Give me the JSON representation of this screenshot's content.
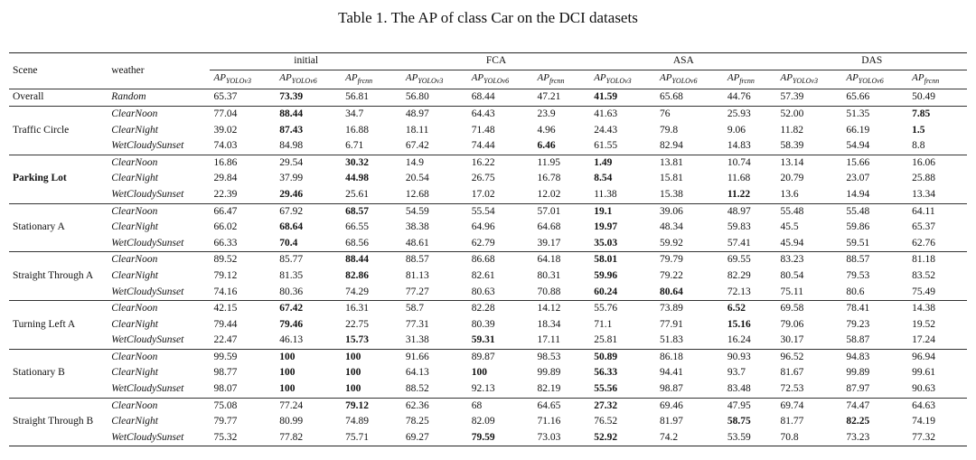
{
  "caption": "Table 1. The AP of class Car on the DCI datasets",
  "headers": {
    "scene": "Scene",
    "weather": "weather",
    "groups": [
      "initial",
      "FCA",
      "ASA",
      "DAS"
    ],
    "sub_base": [
      "AP",
      "AP",
      "AP"
    ],
    "sub_suffix": [
      "YOLOv3",
      "YOLOv6",
      "frcnn"
    ]
  },
  "rows": [
    {
      "scene": "Overall",
      "weather": "Random",
      "vals": [
        "65.37",
        "73.39",
        "56.81",
        "56.80",
        "68.44",
        "47.21",
        "41.59",
        "65.68",
        "44.76",
        "57.39",
        "65.66",
        "50.49"
      ],
      "bold": [
        1,
        6
      ]
    },
    {
      "scene": "",
      "weather": "ClearNoon",
      "vals": [
        "77.04",
        "88.44",
        "34.7",
        "48.97",
        "64.43",
        "23.9",
        "41.63",
        "76",
        "25.93",
        "52.00",
        "51.35",
        "7.85"
      ],
      "bold": [
        1,
        11
      ]
    },
    {
      "scene": "Traffic Circle",
      "weather": "ClearNight",
      "vals": [
        "39.02",
        "87.43",
        "16.88",
        "18.11",
        "71.48",
        "4.96",
        "24.43",
        "79.8",
        "9.06",
        "11.82",
        "66.19",
        "1.5"
      ],
      "bold": [
        1,
        11
      ]
    },
    {
      "scene": "",
      "weather": "WetCloudySunset",
      "vals": [
        "74.03",
        "84.98",
        "6.71",
        "67.42",
        "74.44",
        "6.46",
        "61.55",
        "82.94",
        "14.83",
        "58.39",
        "54.94",
        "8.8"
      ],
      "bold": [
        5
      ]
    },
    {
      "scene": "",
      "weather": "ClearNoon",
      "vals": [
        "16.86",
        "29.54",
        "30.32",
        "14.9",
        "16.22",
        "11.95",
        "1.49",
        "13.81",
        "10.74",
        "13.14",
        "15.66",
        "16.06"
      ],
      "bold": [
        2,
        6
      ]
    },
    {
      "scene": "Parking Lot",
      "weather": "ClearNight",
      "vals": [
        "29.84",
        "37.99",
        "44.98",
        "20.54",
        "26.75",
        "16.78",
        "8.54",
        "15.81",
        "11.68",
        "20.79",
        "23.07",
        "25.88"
      ],
      "bold": [
        2,
        6
      ]
    },
    {
      "scene": "",
      "weather": "WetCloudySunset",
      "vals": [
        "22.39",
        "29.46",
        "25.61",
        "12.68",
        "17.02",
        "12.02",
        "11.38",
        "15.38",
        "11.22",
        "13.6",
        "14.94",
        "13.34"
      ],
      "bold": [
        1,
        8
      ]
    },
    {
      "scene": "",
      "weather": "ClearNoon",
      "vals": [
        "66.47",
        "67.92",
        "68.57",
        "54.59",
        "55.54",
        "57.01",
        "19.1",
        "39.06",
        "48.97",
        "55.48",
        "55.48",
        "64.11"
      ],
      "bold": [
        2,
        6
      ]
    },
    {
      "scene": "Stationary A",
      "weather": "ClearNight",
      "vals": [
        "66.02",
        "68.64",
        "66.55",
        "38.38",
        "64.96",
        "64.68",
        "19.97",
        "48.34",
        "59.83",
        "45.5",
        "59.86",
        "65.37"
      ],
      "bold": [
        1,
        6
      ]
    },
    {
      "scene": "",
      "weather": "WetCloudySunset",
      "vals": [
        "66.33",
        "70.4",
        "68.56",
        "48.61",
        "62.79",
        "39.17",
        "35.03",
        "59.92",
        "57.41",
        "45.94",
        "59.51",
        "62.76"
      ],
      "bold": [
        1,
        6
      ]
    },
    {
      "scene": "",
      "weather": "ClearNoon",
      "vals": [
        "89.52",
        "85.77",
        "88.44",
        "88.57",
        "86.68",
        "64.18",
        "58.01",
        "79.79",
        "69.55",
        "83.23",
        "88.57",
        "81.18"
      ],
      "bold": [
        2,
        6
      ]
    },
    {
      "scene": "Straight Through A",
      "weather": "ClearNight",
      "vals": [
        "79.12",
        "81.35",
        "82.86",
        "81.13",
        "82.61",
        "80.31",
        "59.96",
        "79.22",
        "82.29",
        "80.54",
        "79.53",
        "83.52"
      ],
      "bold": [
        2,
        6
      ]
    },
    {
      "scene": "",
      "weather": "WetCloudySunset",
      "vals": [
        "74.16",
        "80.36",
        "74.29",
        "77.27",
        "80.63",
        "70.88",
        "60.24",
        "80.64",
        "72.13",
        "75.11",
        "80.6",
        "75.49"
      ],
      "bold": [
        6,
        7
      ]
    },
    {
      "scene": "",
      "weather": "ClearNoon",
      "vals": [
        "42.15",
        "67.42",
        "16.31",
        "58.7",
        "82.28",
        "14.12",
        "55.76",
        "73.89",
        "6.52",
        "69.58",
        "78.41",
        "14.38"
      ],
      "bold": [
        1,
        8
      ]
    },
    {
      "scene": "Turning Left A",
      "weather": "ClearNight",
      "vals": [
        "79.44",
        "79.46",
        "22.75",
        "77.31",
        "80.39",
        "18.34",
        "71.1",
        "77.91",
        "15.16",
        "79.06",
        "79.23",
        "19.52"
      ],
      "bold": [
        1,
        8
      ]
    },
    {
      "scene": "",
      "weather": "WetCloudySunset",
      "vals": [
        "22.47",
        "46.13",
        "15.73",
        "31.38",
        "59.31",
        "17.11",
        "25.81",
        "51.83",
        "16.24",
        "30.17",
        "58.87",
        "17.24"
      ],
      "bold": [
        2,
        4
      ]
    },
    {
      "scene": "",
      "weather": "ClearNoon",
      "vals": [
        "99.59",
        "100",
        "100",
        "91.66",
        "89.87",
        "98.53",
        "50.89",
        "86.18",
        "90.93",
        "96.52",
        "94.83",
        "96.94"
      ],
      "bold": [
        1,
        2,
        6
      ]
    },
    {
      "scene": "Stationary B",
      "weather": "ClearNight",
      "vals": [
        "98.77",
        "100",
        "100",
        "64.13",
        "100",
        "99.89",
        "56.33",
        "94.41",
        "93.7",
        "81.67",
        "99.89",
        "99.61"
      ],
      "bold": [
        1,
        2,
        4,
        6
      ]
    },
    {
      "scene": "",
      "weather": "WetCloudySunset",
      "vals": [
        "98.07",
        "100",
        "100",
        "88.52",
        "92.13",
        "82.19",
        "55.56",
        "98.87",
        "83.48",
        "72.53",
        "87.97",
        "90.63"
      ],
      "bold": [
        1,
        2,
        6
      ]
    },
    {
      "scene": "",
      "weather": "ClearNoon",
      "vals": [
        "75.08",
        "77.24",
        "79.12",
        "62.36",
        "68",
        "64.65",
        "27.32",
        "69.46",
        "47.95",
        "69.74",
        "74.47",
        "64.63"
      ],
      "bold": [
        2,
        6
      ]
    },
    {
      "scene": "Straight Through B",
      "weather": "ClearNight",
      "vals": [
        "79.77",
        "80.99",
        "74.89",
        "78.25",
        "82.09",
        "71.16",
        "76.52",
        "81.97",
        "58.75",
        "81.77",
        "82.25",
        "74.19"
      ],
      "bold": [
        8,
        10
      ]
    },
    {
      "scene": "",
      "weather": "WetCloudySunset",
      "vals": [
        "75.32",
        "77.82",
        "75.71",
        "69.27",
        "79.59",
        "73.03",
        "52.92",
        "74.2",
        "53.59",
        "70.8",
        "73.23",
        "77.32"
      ],
      "bold": [
        4,
        6
      ]
    }
  ],
  "bold_scene": [
    "Parking Lot"
  ]
}
